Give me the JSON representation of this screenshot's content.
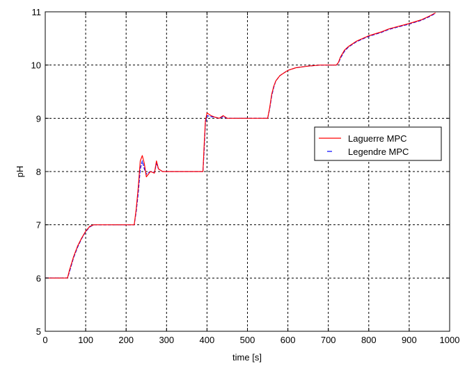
{
  "chart_data": {
    "type": "line",
    "title": "",
    "xlabel": "time [s]",
    "ylabel": "pH",
    "xlim": [
      0,
      1000
    ],
    "ylim": [
      5,
      11
    ],
    "x_ticks": [
      "0",
      "100",
      "200",
      "300",
      "400",
      "500",
      "600",
      "700",
      "800",
      "900",
      "1000"
    ],
    "y_ticks": [
      "5",
      "6",
      "7",
      "8",
      "9",
      "10",
      "11"
    ],
    "grid": true,
    "legend_position": "right",
    "series": [
      {
        "name": "Laguerre MPC",
        "color": "#ff0000",
        "style": "solid",
        "x": [
          0,
          20,
          40,
          55,
          60,
          70,
          80,
          90,
          100,
          110,
          120,
          130,
          150,
          180,
          200,
          215,
          220,
          225,
          230,
          235,
          240,
          245,
          250,
          255,
          260,
          270,
          275,
          280,
          290,
          300,
          320,
          350,
          380,
          390,
          393,
          396,
          400,
          410,
          420,
          430,
          440,
          450,
          470,
          500,
          530,
          550,
          555,
          560,
          565,
          570,
          580,
          590,
          600,
          620,
          650,
          680,
          700,
          720,
          725,
          730,
          740,
          750,
          770,
          800,
          830,
          850,
          870,
          900,
          930,
          950,
          965
        ],
        "y": [
          6.0,
          6.0,
          6.0,
          6.0,
          6.15,
          6.4,
          6.6,
          6.75,
          6.88,
          6.97,
          7.0,
          7.0,
          7.0,
          7.0,
          7.0,
          7.0,
          7.0,
          7.3,
          7.7,
          8.2,
          8.3,
          8.15,
          7.9,
          7.95,
          8.0,
          7.97,
          8.2,
          8.05,
          8.0,
          8.0,
          8.0,
          8.0,
          8.0,
          8.0,
          8.5,
          8.95,
          9.1,
          9.05,
          9.02,
          9.0,
          9.05,
          9.0,
          9.0,
          9.0,
          9.0,
          9.0,
          9.2,
          9.45,
          9.6,
          9.7,
          9.8,
          9.85,
          9.9,
          9.95,
          9.98,
          10.0,
          10.0,
          10.0,
          10.05,
          10.15,
          10.28,
          10.35,
          10.45,
          10.55,
          10.62,
          10.68,
          10.72,
          10.78,
          10.85,
          10.92,
          10.98
        ]
      },
      {
        "name": "Legendre MPC",
        "color": "#0000ff",
        "style": "dashed",
        "x": [
          0,
          20,
          40,
          55,
          60,
          70,
          80,
          90,
          100,
          110,
          120,
          130,
          150,
          180,
          200,
          215,
          220,
          225,
          230,
          235,
          240,
          245,
          250,
          255,
          260,
          270,
          275,
          280,
          290,
          300,
          320,
          350,
          380,
          390,
          393,
          396,
          400,
          410,
          420,
          430,
          440,
          450,
          470,
          500,
          530,
          550,
          555,
          560,
          565,
          570,
          580,
          590,
          600,
          620,
          650,
          680,
          700,
          720,
          725,
          730,
          740,
          750,
          770,
          800,
          830,
          850,
          870,
          900,
          930,
          950,
          965
        ],
        "y": [
          6.0,
          6.0,
          6.0,
          6.0,
          6.12,
          6.38,
          6.58,
          6.74,
          6.87,
          6.96,
          7.0,
          7.0,
          7.0,
          7.0,
          7.0,
          7.0,
          7.0,
          7.25,
          7.6,
          8.05,
          8.2,
          8.05,
          7.95,
          7.98,
          8.0,
          7.98,
          8.15,
          8.05,
          8.0,
          8.0,
          8.0,
          8.0,
          8.0,
          8.0,
          8.4,
          8.9,
          9.05,
          9.03,
          9.02,
          9.0,
          9.03,
          9.0,
          9.0,
          9.0,
          9.0,
          9.0,
          9.18,
          9.42,
          9.58,
          9.7,
          9.8,
          9.85,
          9.9,
          9.95,
          9.98,
          10.0,
          10.0,
          10.0,
          10.04,
          10.13,
          10.26,
          10.34,
          10.44,
          10.54,
          10.61,
          10.67,
          10.71,
          10.77,
          10.84,
          10.91,
          10.97
        ]
      }
    ]
  }
}
